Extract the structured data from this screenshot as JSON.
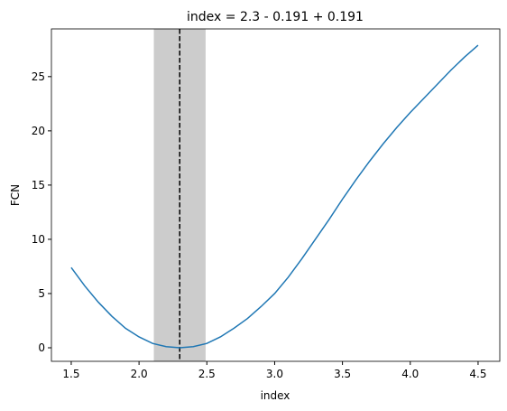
{
  "chart_data": {
    "type": "line",
    "title": "index = 2.3 - 0.191 + 0.191",
    "x_label": "index",
    "y_label": "FCN",
    "x": [
      1.5,
      1.6,
      1.7,
      1.8,
      1.9,
      2.0,
      2.1,
      2.2,
      2.3,
      2.4,
      2.5,
      2.6,
      2.7,
      2.8,
      2.9,
      3.0,
      3.1,
      3.2,
      3.3,
      3.4,
      3.5,
      3.6,
      3.7,
      3.8,
      3.9,
      4.0,
      4.1,
      4.2,
      4.3,
      4.4,
      4.5
    ],
    "series": [
      {
        "color": "#1f77b4",
        "values": [
          7.4,
          5.7,
          4.2,
          2.9,
          1.8,
          1.0,
          0.4,
          0.1,
          0,
          0.1,
          0.4,
          1.0,
          1.8,
          2.7,
          3.8,
          5.0,
          6.5,
          8.2,
          10.0,
          11.8,
          13.7,
          15.5,
          17.2,
          18.8,
          20.3,
          21.7,
          23.0,
          24.3,
          25.6,
          26.8,
          27.9
        ]
      }
    ],
    "band": [
      2.109,
      2.491
    ],
    "band_color": "#cccccc",
    "vline": 2.3,
    "xlim": [
      1.354,
      4.66
    ],
    "ylim": [
      -1.25,
      29.4
    ],
    "xticks": [
      1.5,
      {
        "value": 2,
        "label": "2.0"
      },
      2.5,
      {
        "value": 3,
        "label": "3.0"
      },
      3.5,
      {
        "value": 4,
        "label": "4.0"
      },
      4.5
    ],
    "yticks": [
      0,
      5,
      10,
      15,
      20,
      25
    ]
  }
}
